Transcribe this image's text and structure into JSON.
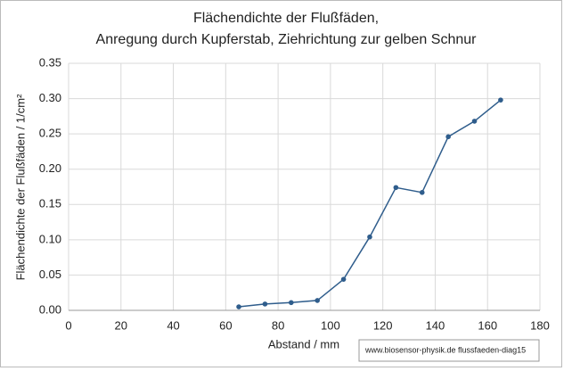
{
  "chart_data": {
    "type": "line",
    "title": "Flächendichte der Flußfäden,",
    "subtitle": "Anregung durch Kupferstab, Ziehrichtung zur gelben Schnur",
    "x_label": "Abstand / mm",
    "y_label": "Flächendichte der Flußfäden / 1/cm²",
    "annotation": "www.biosensor-physik.de  flussfaeden-diag15",
    "x": [
      65,
      75,
      85,
      95,
      105,
      115,
      125,
      135,
      145,
      155,
      165
    ],
    "series": [
      {
        "name": "Flächendichte",
        "color": "#2f5d8c",
        "values": [
          0.005,
          0.009,
          0.011,
          0.014,
          0.044,
          0.104,
          0.174,
          0.167,
          0.246,
          0.268,
          0.298
        ]
      }
    ],
    "xlim": [
      0,
      180
    ],
    "xticks": [
      0,
      20,
      40,
      60,
      80,
      100,
      120,
      140,
      160,
      180
    ],
    "ylim": [
      0,
      0.35
    ],
    "yticks": [
      {
        "value": 0,
        "label": "0.00"
      },
      {
        "value": 0.05,
        "label": "0.05"
      },
      {
        "value": 0.1,
        "label": "0.10"
      },
      {
        "value": 0.15,
        "label": "0.15"
      },
      {
        "value": 0.2,
        "label": "0.20"
      },
      {
        "value": 0.25,
        "label": "0.25"
      },
      {
        "value": 0.3,
        "label": "0.30"
      },
      {
        "value": 0.35,
        "label": "0.35"
      }
    ],
    "grid": true
  }
}
